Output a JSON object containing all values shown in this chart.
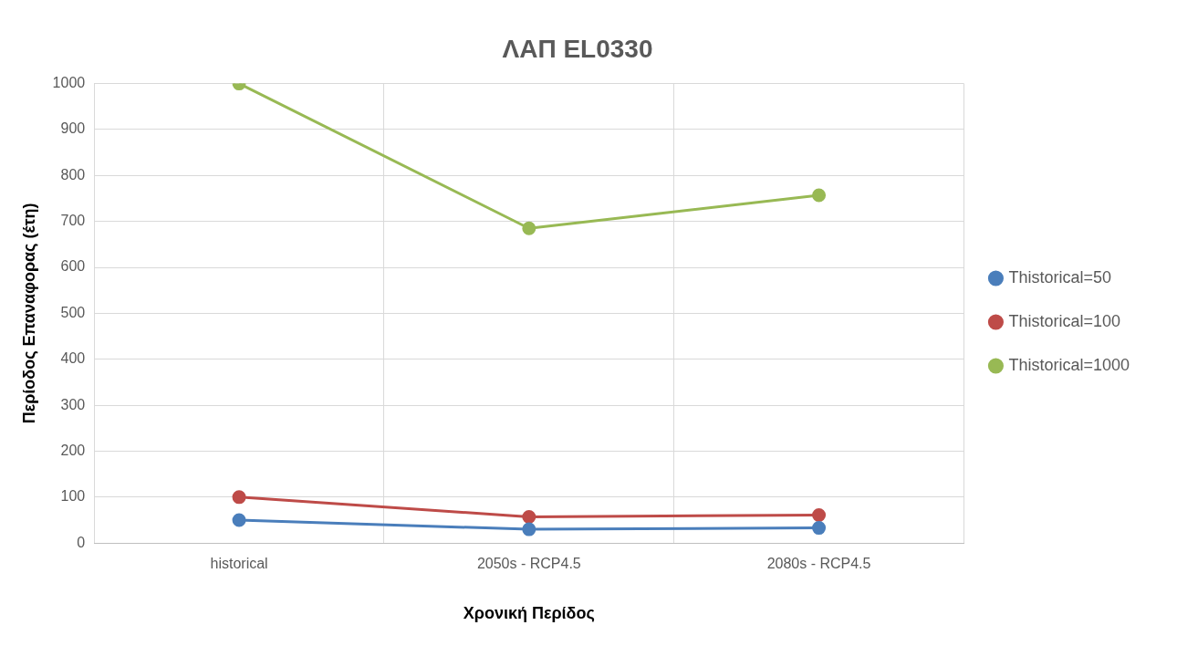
{
  "chart_data": {
    "type": "line",
    "title": "ΛΑΠ EL0330",
    "xlabel": "Χρονική Περίδος",
    "ylabel": "Περίοδος Επαναφορας (έτη)",
    "categories": [
      "historical",
      "2050s - RCP4.5",
      "2080s - RCP4.5"
    ],
    "series": [
      {
        "name": "Thistorical=50",
        "color": "#4a7ebb",
        "values": [
          50,
          30,
          33
        ]
      },
      {
        "name": "Thistorical=100",
        "color": "#be4b48",
        "values": [
          100,
          57,
          61
        ]
      },
      {
        "name": "Thistorical=1000",
        "color": "#98b954",
        "values": [
          1000,
          685,
          757
        ]
      }
    ],
    "ylim": [
      0,
      1000
    ],
    "yticks": [
      0,
      100,
      200,
      300,
      400,
      500,
      600,
      700,
      800,
      900,
      1000
    ],
    "grid": true,
    "legend": "right",
    "marker": "circle",
    "line_style": "solid"
  }
}
